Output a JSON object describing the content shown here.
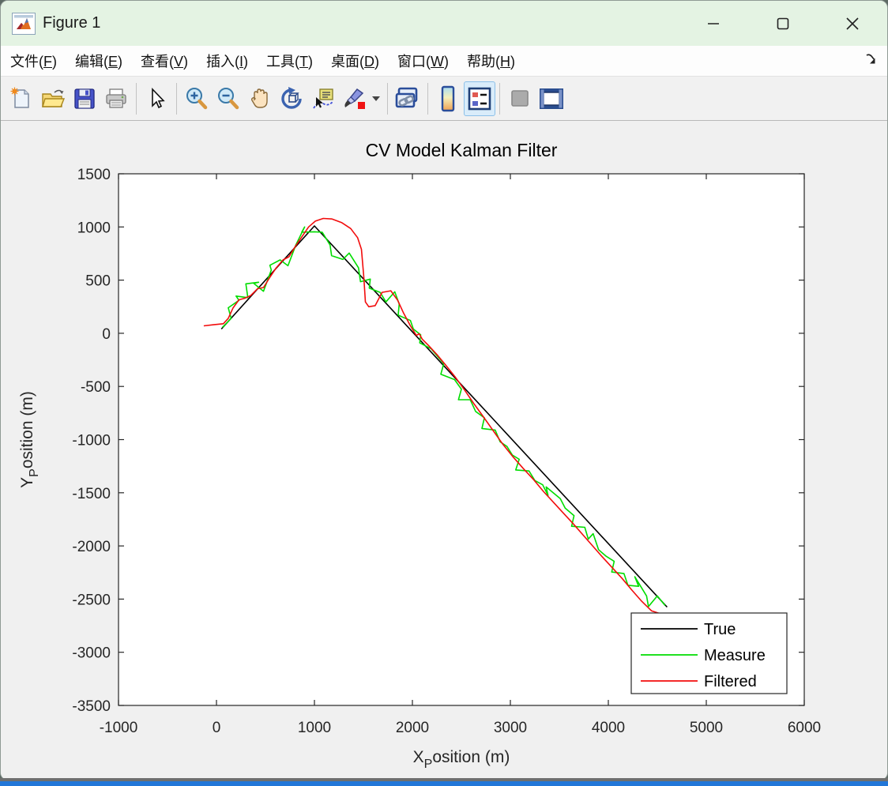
{
  "window": {
    "title": "Figure 1",
    "app_icon": "matlab-logo-icon",
    "controls": [
      {
        "icon": "minimize-icon"
      },
      {
        "icon": "maximize-icon"
      },
      {
        "icon": "close-icon"
      }
    ]
  },
  "menu": {
    "items": [
      {
        "label": "文件",
        "mnemonic": "F"
      },
      {
        "label": "编辑",
        "mnemonic": "E"
      },
      {
        "label": "查看",
        "mnemonic": "V"
      },
      {
        "label": "插入",
        "mnemonic": "I"
      },
      {
        "label": "工具",
        "mnemonic": "T"
      },
      {
        "label": "桌面",
        "mnemonic": "D"
      },
      {
        "label": "窗口",
        "mnemonic": "W"
      },
      {
        "label": "帮助",
        "mnemonic": "H"
      }
    ],
    "paren_open": "(",
    "paren_close": ")",
    "dock_icon": "dock-arrow-icon"
  },
  "toolbar": {
    "buttons": [
      {
        "icon": "new-figure-icon",
        "group": 1
      },
      {
        "icon": "open-file-icon",
        "group": 1
      },
      {
        "icon": "save-figure-icon",
        "group": 1
      },
      {
        "icon": "print-figure-icon",
        "group": 1
      },
      {
        "icon": "edit-plot-cursor-icon",
        "group": 2
      },
      {
        "icon": "zoom-in-icon",
        "group": 3
      },
      {
        "icon": "zoom-out-icon",
        "group": 3
      },
      {
        "icon": "pan-hand-icon",
        "group": 3
      },
      {
        "icon": "rotate-3d-icon",
        "group": 3
      },
      {
        "icon": "data-cursor-icon",
        "group": 3
      },
      {
        "icon": "brush-data-icon",
        "group": 3,
        "has_dropdown": true
      },
      {
        "icon": "link-plot-icon",
        "group": 4
      },
      {
        "icon": "insert-colorbar-icon",
        "group": 5
      },
      {
        "icon": "insert-legend-icon",
        "group": 5,
        "active": true
      },
      {
        "icon": "hide-plot-tools-icon",
        "group": 6
      },
      {
        "icon": "dock-figure-icon",
        "group": 6
      }
    ]
  },
  "chart_data": {
    "type": "line",
    "title": "CV Model Kalman Filter",
    "xlabel": {
      "main": "X",
      "sub": "P",
      "rest": "osition (m)"
    },
    "ylabel": {
      "main": "Y",
      "sub": "P",
      "rest": "osition (m)"
    },
    "xlim": [
      -1000,
      6000
    ],
    "ylim": [
      -3500,
      1500
    ],
    "x_ticks": [
      -1000,
      0,
      1000,
      2000,
      3000,
      4000,
      5000,
      6000
    ],
    "y_ticks": [
      1500,
      1000,
      500,
      0,
      -500,
      -1000,
      -1500,
      -2000,
      -2500,
      -3000,
      -3500
    ],
    "grid": false,
    "legend_position": "southeast",
    "series": [
      {
        "name": "True",
        "color": "#000000",
        "points": [
          [
            50,
            40
          ],
          [
            1000,
            1010
          ],
          [
            4600,
            -2575
          ]
        ]
      },
      {
        "name": "Measure",
        "color": "#00dd00",
        "points": [
          [
            60,
            55
          ],
          [
            150,
            140
          ],
          [
            120,
            240
          ],
          [
            230,
            310
          ],
          [
            200,
            350
          ],
          [
            320,
            335
          ],
          [
            300,
            465
          ],
          [
            430,
            480
          ],
          [
            380,
            470
          ],
          [
            480,
            395
          ],
          [
            560,
            595
          ],
          [
            545,
            640
          ],
          [
            650,
            690
          ],
          [
            730,
            635
          ],
          [
            810,
            830
          ],
          [
            900,
            1000
          ],
          [
            870,
            950
          ],
          [
            1000,
            955
          ],
          [
            1080,
            950
          ],
          [
            1160,
            830
          ],
          [
            1175,
            730
          ],
          [
            1290,
            695
          ],
          [
            1355,
            755
          ],
          [
            1450,
            615
          ],
          [
            1470,
            485
          ],
          [
            1570,
            510
          ],
          [
            1560,
            425
          ],
          [
            1670,
            385
          ],
          [
            1730,
            295
          ],
          [
            1820,
            390
          ],
          [
            1865,
            275
          ],
          [
            1855,
            170
          ],
          [
            1980,
            120
          ],
          [
            2010,
            40
          ],
          [
            2085,
            -15
          ],
          [
            2075,
            -90
          ],
          [
            2190,
            -145
          ],
          [
            2255,
            -215
          ],
          [
            2320,
            -285
          ],
          [
            2290,
            -385
          ],
          [
            2430,
            -435
          ],
          [
            2500,
            -525
          ],
          [
            2470,
            -625
          ],
          [
            2590,
            -625
          ],
          [
            2645,
            -735
          ],
          [
            2735,
            -795
          ],
          [
            2710,
            -895
          ],
          [
            2845,
            -910
          ],
          [
            2895,
            -1020
          ],
          [
            2965,
            -1065
          ],
          [
            3020,
            -1145
          ],
          [
            3090,
            -1185
          ],
          [
            3055,
            -1285
          ],
          [
            3190,
            -1295
          ],
          [
            3250,
            -1385
          ],
          [
            3330,
            -1425
          ],
          [
            3385,
            -1525
          ],
          [
            3365,
            -1445
          ],
          [
            3510,
            -1555
          ],
          [
            3560,
            -1645
          ],
          [
            3650,
            -1715
          ],
          [
            3625,
            -1815
          ],
          [
            3760,
            -1825
          ],
          [
            3795,
            -1935
          ],
          [
            3845,
            -1885
          ],
          [
            3900,
            -2035
          ],
          [
            3975,
            -2095
          ],
          [
            4060,
            -2145
          ],
          [
            4035,
            -2245
          ],
          [
            4160,
            -2260
          ],
          [
            4200,
            -2370
          ],
          [
            4310,
            -2380
          ],
          [
            4270,
            -2290
          ],
          [
            4390,
            -2470
          ],
          [
            4410,
            -2570
          ],
          [
            4500,
            -2470
          ],
          [
            4580,
            -2560
          ]
        ]
      },
      {
        "name": "Filtered",
        "color": "#f20c0c",
        "points": [
          [
            -130,
            70
          ],
          [
            -30,
            80
          ],
          [
            70,
            90
          ],
          [
            120,
            140
          ],
          [
            170,
            240
          ],
          [
            230,
            315
          ],
          [
            290,
            330
          ],
          [
            350,
            355
          ],
          [
            420,
            420
          ],
          [
            480,
            430
          ],
          [
            540,
            520
          ],
          [
            610,
            615
          ],
          [
            680,
            690
          ],
          [
            740,
            720
          ],
          [
            800,
            810
          ],
          [
            870,
            905
          ],
          [
            940,
            1000
          ],
          [
            1010,
            1055
          ],
          [
            1090,
            1080
          ],
          [
            1180,
            1075
          ],
          [
            1280,
            1040
          ],
          [
            1370,
            985
          ],
          [
            1440,
            900
          ],
          [
            1480,
            790
          ],
          [
            1505,
            520
          ],
          [
            1520,
            295
          ],
          [
            1555,
            250
          ],
          [
            1620,
            260
          ],
          [
            1690,
            385
          ],
          [
            1780,
            400
          ],
          [
            1850,
            310
          ],
          [
            1910,
            190
          ],
          [
            1980,
            70
          ],
          [
            2040,
            -20
          ],
          [
            2070,
            -5
          ],
          [
            2100,
            -55
          ],
          [
            2170,
            -120
          ],
          [
            2250,
            -200
          ],
          [
            2340,
            -300
          ],
          [
            2440,
            -415
          ],
          [
            2530,
            -530
          ],
          [
            2630,
            -665
          ],
          [
            2720,
            -780
          ],
          [
            2820,
            -910
          ],
          [
            2920,
            -1040
          ],
          [
            3030,
            -1165
          ],
          [
            3130,
            -1270
          ],
          [
            3240,
            -1380
          ],
          [
            3340,
            -1490
          ],
          [
            3440,
            -1590
          ],
          [
            3540,
            -1690
          ],
          [
            3640,
            -1790
          ],
          [
            3740,
            -1895
          ],
          [
            3840,
            -2000
          ],
          [
            3940,
            -2105
          ],
          [
            4040,
            -2205
          ],
          [
            4140,
            -2305
          ],
          [
            4240,
            -2415
          ],
          [
            4340,
            -2520
          ],
          [
            4440,
            -2610
          ],
          [
            4540,
            -2640
          ],
          [
            4600,
            -2720
          ]
        ]
      }
    ]
  }
}
